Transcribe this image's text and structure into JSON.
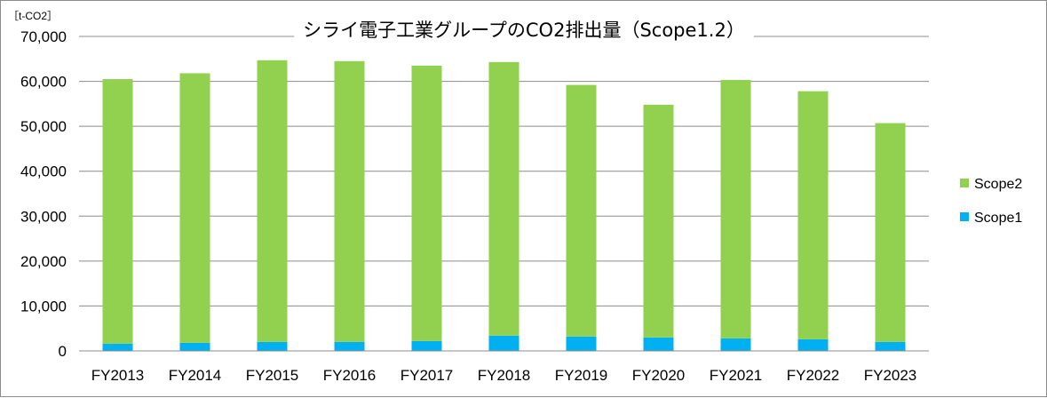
{
  "chart_data": {
    "type": "bar",
    "stacked": true,
    "title": "シライ電子工業グループのCO2排出量（Scope1.2）",
    "unit_label": "［t-CO2］",
    "categories": [
      "FY2013",
      "FY2014",
      "FY2015",
      "FY2016",
      "FY2017",
      "FY2018",
      "FY2019",
      "FY2020",
      "FY2021",
      "FY2022",
      "FY2023"
    ],
    "series": [
      {
        "name": "Scope1",
        "color": "#00b0f0",
        "values": [
          1600,
          1800,
          2000,
          2000,
          2200,
          3400,
          3200,
          3000,
          2800,
          2600,
          2000
        ]
      },
      {
        "name": "Scope2",
        "color": "#92d050",
        "values": [
          58900,
          60000,
          62700,
          62500,
          61300,
          60900,
          56000,
          51800,
          57500,
          55200,
          48700
        ]
      }
    ],
    "ylim": [
      0,
      70000
    ],
    "yticks": [
      0,
      10000,
      20000,
      30000,
      40000,
      50000,
      60000,
      70000
    ],
    "ytick_labels": [
      "0",
      "10,000",
      "20,000",
      "30,000",
      "40,000",
      "50,000",
      "60,000",
      "70,000"
    ],
    "legend": [
      "Scope2",
      "Scope1"
    ],
    "legend_position": "right",
    "grid": true
  }
}
